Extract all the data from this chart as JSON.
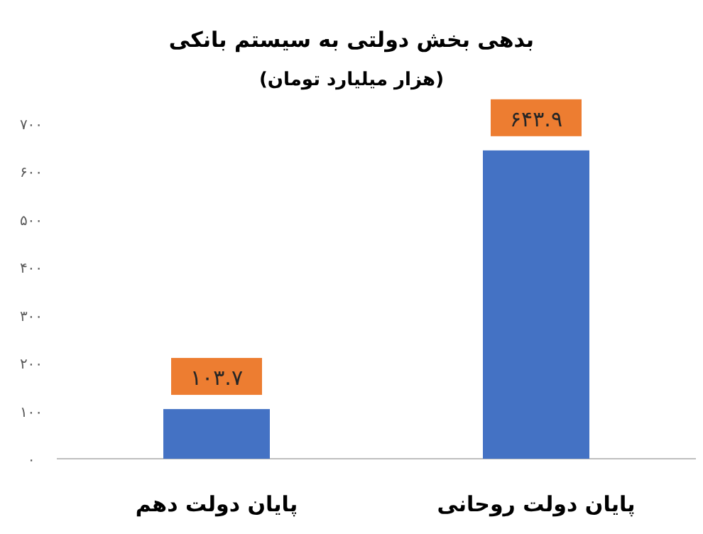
{
  "chart_data": {
    "type": "bar",
    "title": "بدهی بخش دولتی به سیستم بانکی",
    "subtitle": "(هزار میلیارد تومان)",
    "categories": [
      "پایان دولت دهم",
      "پایان دولت روحانی"
    ],
    "values": [
      103.7,
      643.9
    ],
    "color": "#4472c4",
    "value_labels": [
      "۱۰۳.۷",
      "۶۴۳.۹"
    ],
    "ylim": [
      0,
      700
    ],
    "yticks": [
      {
        "value": 0,
        "label": "۰"
      },
      {
        "value": 100,
        "label": "۱۰۰"
      },
      {
        "value": 200,
        "label": "۲۰۰"
      },
      {
        "value": 300,
        "label": "۳۰۰"
      },
      {
        "value": 400,
        "label": "۴۰۰"
      },
      {
        "value": 500,
        "label": "۵۰۰"
      },
      {
        "value": 600,
        "label": "۶۰۰"
      },
      {
        "value": 700,
        "label": "۷۰۰"
      }
    ]
  }
}
